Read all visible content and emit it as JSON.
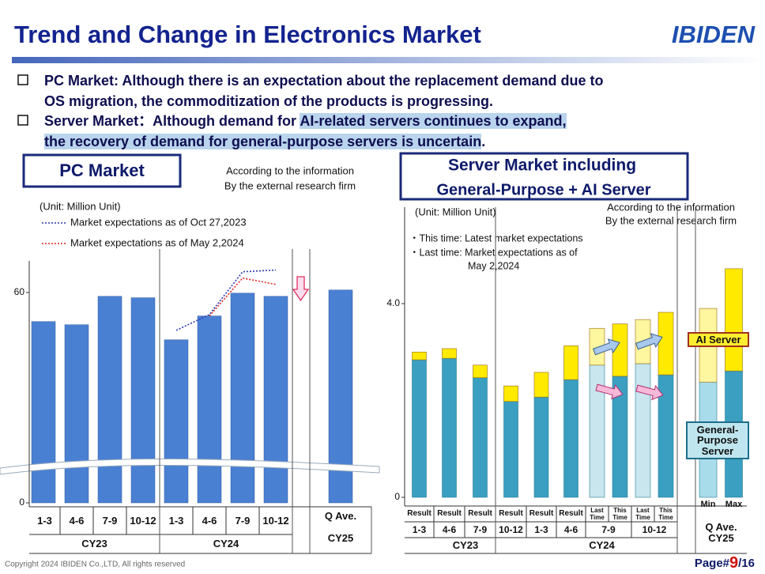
{
  "slide": {
    "title": "Trend and Change in Electronics Market",
    "logo": "IBIDEN",
    "bullets": [
      [
        [
          "PC Market: Although there is an expectation about the replacement demand due to"
        ],
        [
          "OS migration, the commoditization of the products is progressing."
        ]
      ],
      [
        [
          "Server Market：Although demand for ",
          "AI-related servers continues to expand,"
        ],
        [
          "the recovery of demand for general-purpose servers is uncertain",
          "."
        ]
      ]
    ],
    "copyright": "Copyright 2024 IBIDEN Co.,LTD, All rights reserved",
    "page": {
      "prefix": "Page#",
      "number": "9",
      "total": "/16"
    }
  },
  "chart_data": [
    {
      "type": "bar",
      "title": "PC Market",
      "note": [
        "According to the information",
        "By the external research firm"
      ],
      "unit": "(Unit: Million Unit)",
      "categories": [
        "1-3",
        "4-6",
        "7-9",
        "10-12",
        "1-3",
        "4-6",
        "7-9",
        "10-12",
        "Q Ave."
      ],
      "groups": [
        {
          "label": "CY23",
          "size": 4
        },
        {
          "label": "CY24",
          "size": 4
        },
        {
          "label": "CY25",
          "size": 1
        }
      ],
      "values": [
        51.7,
        50.8,
        58.9,
        58.5,
        46.5,
        53.3,
        59.8,
        58.9,
        60.7
      ],
      "color": "#4a80d2",
      "series": [
        {
          "name": "Market expectations as of Oct 27,2023",
          "color": "#2c35b0",
          "values": [
            null,
            null,
            null,
            null,
            49.2,
            53.7,
            65.9,
            66.4,
            null
          ]
        },
        {
          "name": "Market expectations as of May 2,2024",
          "color": "#e02424",
          "values": [
            null,
            null,
            null,
            null,
            null,
            53.3,
            64.1,
            62.3,
            null
          ]
        }
      ],
      "ylim": [
        0,
        69
      ],
      "yticks": [
        0,
        60
      ]
    },
    {
      "type": "stacked_bar",
      "title": [
        "Server Market including",
        "General-Purpose + AI Server"
      ],
      "note": [
        "According to the information",
        "By the external research firm"
      ],
      "unit": "(Unit: Million Unit)",
      "legend_text": [
        "・This time: Latest market expectations",
        "・Last time: Market expectations as of",
        "May 2,2024"
      ],
      "categories": [
        "Result",
        "Result",
        "Result",
        "Result",
        "Result",
        "Result",
        "Last Time",
        "This Time",
        "Last Time",
        "This Time",
        "Min",
        "Max"
      ],
      "periods": [
        {
          "label": "1-3",
          "size": 1
        },
        {
          "label": "4-6",
          "size": 1
        },
        {
          "label": "7-9",
          "size": 1
        },
        {
          "label": "10-12",
          "size": 1
        },
        {
          "label": "1-3",
          "size": 1
        },
        {
          "label": "4-6",
          "size": 1
        },
        {
          "label": "7-9",
          "size": 2
        },
        {
          "label": "10-12",
          "size": 2
        }
      ],
      "groups": [
        {
          "label": "CY23",
          "size": 4
        },
        {
          "label": "CY24",
          "size": 6
        },
        {
          "label": "Q Ave. CY25",
          "size": 2
        }
      ],
      "series": [
        {
          "name": "General-Purpose Server",
          "colors": [
            "#3a9fc0",
            "#3a9fc0",
            "#3a9fc0",
            "#3a9fc0",
            "#3a9fc0",
            "#3a9fc0",
            "#c9e5ee",
            "#3a9fc0",
            "#c9e5ee",
            "#3a9fc0",
            "#a9dcea",
            "#3a9fc0"
          ],
          "values": [
            2.84,
            2.87,
            2.47,
            1.98,
            2.07,
            2.43,
            2.73,
            2.5,
            2.76,
            2.53,
            2.38,
            2.61
          ]
        },
        {
          "name": "AI Server",
          "colors": [
            "#ffea00",
            "#ffea00",
            "#ffea00",
            "#ffea00",
            "#ffea00",
            "#ffea00",
            "#fff6a0",
            "#ffea00",
            "#fff6a0",
            "#ffea00",
            "#fff6a0",
            "#ffea00"
          ],
          "values": [
            0.16,
            0.2,
            0.26,
            0.32,
            0.51,
            0.7,
            0.76,
            1.08,
            0.91,
            1.29,
            1.52,
            2.11
          ]
        }
      ],
      "ylim": [
        0,
        5.4
      ],
      "yticks": [
        0,
        {
          "value": 4,
          "label": "4.0"
        }
      ]
    }
  ]
}
